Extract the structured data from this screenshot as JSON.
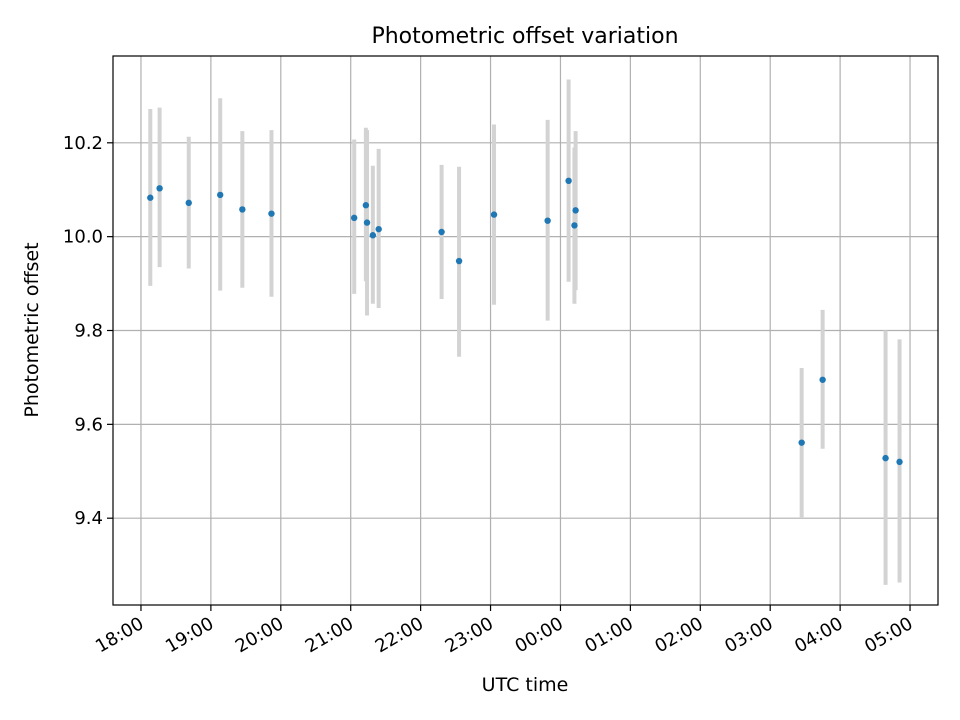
{
  "chart_data": {
    "type": "scatter",
    "title": "Photometric offset variation",
    "xlabel": "UTC time",
    "ylabel": "Photometric offset",
    "x_axis": {
      "kind": "time",
      "start": "2024-01-01T17:36",
      "end": "2024-01-02T05:24",
      "ticks": [
        "18:00",
        "19:00",
        "20:00",
        "21:00",
        "22:00",
        "23:00",
        "00:00",
        "01:00",
        "02:00",
        "03:00",
        "04:00",
        "05:00"
      ]
    },
    "ylim": [
      9.215,
      10.385
    ],
    "y_ticks": [
      "9.4",
      "9.6",
      "9.8",
      "10.0",
      "10.2"
    ],
    "grid": true,
    "point_color": "#1f77b4",
    "errorbar_color": "#d3d3d3",
    "points": [
      {
        "x": "2024-01-01T18:08",
        "y": 10.083,
        "low": 9.895,
        "high": 10.272
      },
      {
        "x": "2024-01-01T18:16",
        "y": 10.103,
        "low": 9.935,
        "high": 10.275
      },
      {
        "x": "2024-01-01T18:41",
        "y": 10.072,
        "low": 9.932,
        "high": 10.213
      },
      {
        "x": "2024-01-01T19:08",
        "y": 10.089,
        "low": 9.885,
        "high": 10.295
      },
      {
        "x": "2024-01-01T19:27",
        "y": 10.058,
        "low": 9.891,
        "high": 10.225
      },
      {
        "x": "2024-01-01T19:52",
        "y": 10.049,
        "low": 9.872,
        "high": 10.227
      },
      {
        "x": "2024-01-01T21:03",
        "y": 10.04,
        "low": 9.878,
        "high": 10.207
      },
      {
        "x": "2024-01-01T21:13",
        "y": 10.067,
        "low": 9.905,
        "high": 10.232
      },
      {
        "x": "2024-01-01T21:14",
        "y": 10.03,
        "low": 9.832,
        "high": 10.227
      },
      {
        "x": "2024-01-01T21:19",
        "y": 10.003,
        "low": 9.857,
        "high": 10.151
      },
      {
        "x": "2024-01-01T21:24",
        "y": 10.016,
        "low": 9.848,
        "high": 10.187
      },
      {
        "x": "2024-01-01T22:18",
        "y": 10.01,
        "low": 9.867,
        "high": 10.153
      },
      {
        "x": "2024-01-01T22:33",
        "y": 9.948,
        "low": 9.744,
        "high": 10.149
      },
      {
        "x": "2024-01-01T23:03",
        "y": 10.047,
        "low": 9.855,
        "high": 10.239
      },
      {
        "x": "2024-01-01T23:49",
        "y": 10.034,
        "low": 9.821,
        "high": 10.249
      },
      {
        "x": "2024-01-02T00:07",
        "y": 10.119,
        "low": 9.904,
        "high": 10.335
      },
      {
        "x": "2024-01-02T00:12",
        "y": 10.024,
        "low": 9.857,
        "high": 10.19
      },
      {
        "x": "2024-01-02T00:13",
        "y": 10.056,
        "low": 9.886,
        "high": 10.225
      },
      {
        "x": "2024-01-02T03:27",
        "y": 9.561,
        "low": 9.402,
        "high": 9.72
      },
      {
        "x": "2024-01-02T03:45",
        "y": 9.695,
        "low": 9.548,
        "high": 9.844
      },
      {
        "x": "2024-01-02T04:39",
        "y": 9.528,
        "low": 9.258,
        "high": 9.8
      },
      {
        "x": "2024-01-02T04:51",
        "y": 9.52,
        "low": 9.263,
        "high": 9.781
      }
    ]
  }
}
